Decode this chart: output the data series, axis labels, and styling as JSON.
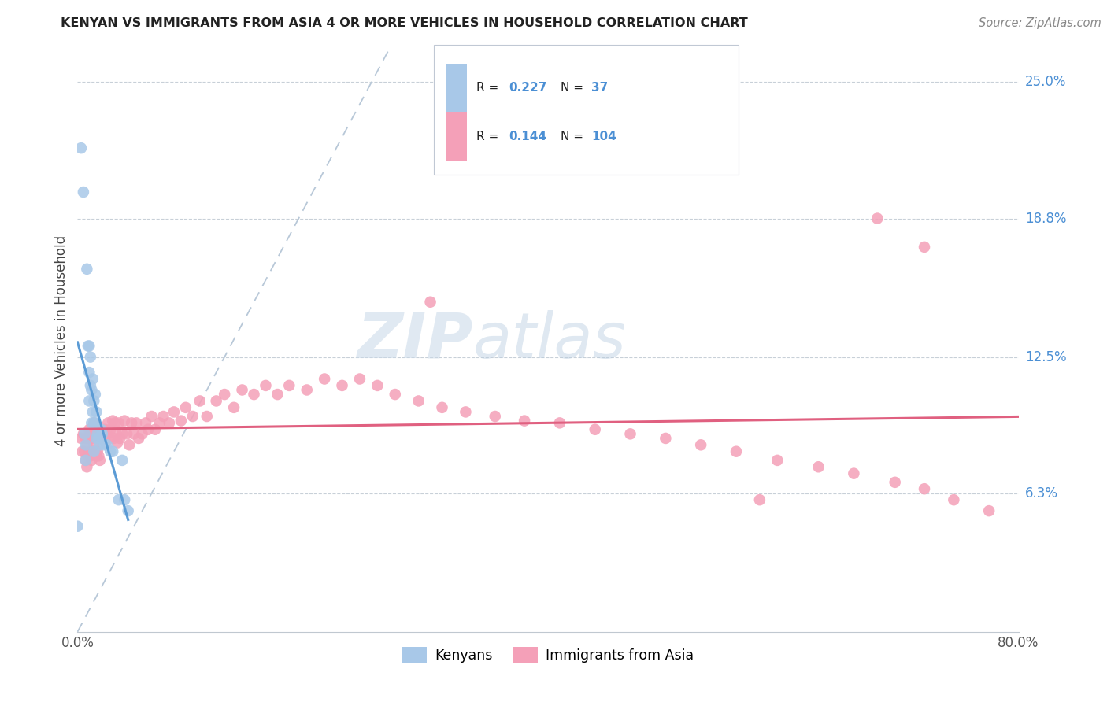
{
  "title": "KENYAN VS IMMIGRANTS FROM ASIA 4 OR MORE VEHICLES IN HOUSEHOLD CORRELATION CHART",
  "source": "Source: ZipAtlas.com",
  "ylabel_label": "4 or more Vehicles in Household",
  "ylabel_ticks": [
    "6.3%",
    "12.5%",
    "18.8%",
    "25.0%"
  ],
  "ylabel_values": [
    0.063,
    0.125,
    0.188,
    0.25
  ],
  "xmin": 0.0,
  "xmax": 0.8,
  "ymin": 0.0,
  "ymax": 0.265,
  "kenyan_R": "0.227",
  "kenyan_N": "37",
  "asian_R": "0.144",
  "asian_N": "104",
  "kenyan_color": "#a8c8e8",
  "kenyan_line_color": "#5b9bd5",
  "asian_color": "#f4a0b8",
  "asian_line_color": "#e06080",
  "diagonal_color": "#b8c8d8",
  "watermark_zip": "ZIP",
  "watermark_atlas": "atlas",
  "kenyan_x": [
    0.003,
    0.005,
    0.006,
    0.007,
    0.007,
    0.008,
    0.009,
    0.01,
    0.01,
    0.01,
    0.011,
    0.011,
    0.012,
    0.012,
    0.013,
    0.013,
    0.014,
    0.014,
    0.014,
    0.015,
    0.015,
    0.016,
    0.016,
    0.017,
    0.018,
    0.019,
    0.02,
    0.021,
    0.023,
    0.025,
    0.028,
    0.03,
    0.035,
    0.038,
    0.04,
    0.043,
    0.0
  ],
  "kenyan_y": [
    0.22,
    0.2,
    0.09,
    0.085,
    0.078,
    0.165,
    0.13,
    0.13,
    0.118,
    0.105,
    0.125,
    0.112,
    0.11,
    0.095,
    0.115,
    0.1,
    0.105,
    0.095,
    0.082,
    0.108,
    0.095,
    0.1,
    0.088,
    0.09,
    0.088,
    0.085,
    0.092,
    0.09,
    0.085,
    0.085,
    0.082,
    0.082,
    0.06,
    0.078,
    0.06,
    0.055,
    0.048
  ],
  "asian_x": [
    0.003,
    0.004,
    0.005,
    0.006,
    0.007,
    0.007,
    0.008,
    0.008,
    0.009,
    0.009,
    0.01,
    0.01,
    0.011,
    0.011,
    0.012,
    0.012,
    0.013,
    0.013,
    0.014,
    0.014,
    0.015,
    0.015,
    0.016,
    0.016,
    0.017,
    0.017,
    0.018,
    0.018,
    0.019,
    0.019,
    0.02,
    0.021,
    0.022,
    0.023,
    0.024,
    0.025,
    0.026,
    0.027,
    0.028,
    0.03,
    0.031,
    0.032,
    0.033,
    0.034,
    0.035,
    0.036,
    0.038,
    0.04,
    0.042,
    0.044,
    0.046,
    0.048,
    0.05,
    0.052,
    0.055,
    0.058,
    0.06,
    0.063,
    0.066,
    0.07,
    0.073,
    0.078,
    0.082,
    0.088,
    0.092,
    0.098,
    0.104,
    0.11,
    0.118,
    0.125,
    0.133,
    0.14,
    0.15,
    0.16,
    0.17,
    0.18,
    0.195,
    0.21,
    0.225,
    0.24,
    0.255,
    0.27,
    0.29,
    0.31,
    0.33,
    0.355,
    0.38,
    0.41,
    0.44,
    0.47,
    0.5,
    0.53,
    0.56,
    0.595,
    0.63,
    0.66,
    0.695,
    0.72,
    0.745,
    0.775,
    0.3,
    0.58,
    0.68,
    0.72
  ],
  "asian_y": [
    0.088,
    0.082,
    0.09,
    0.082,
    0.088,
    0.078,
    0.085,
    0.075,
    0.088,
    0.08,
    0.092,
    0.082,
    0.09,
    0.08,
    0.088,
    0.078,
    0.09,
    0.082,
    0.095,
    0.085,
    0.092,
    0.082,
    0.09,
    0.08,
    0.092,
    0.082,
    0.09,
    0.08,
    0.088,
    0.078,
    0.092,
    0.09,
    0.088,
    0.092,
    0.086,
    0.09,
    0.095,
    0.088,
    0.092,
    0.096,
    0.088,
    0.095,
    0.09,
    0.086,
    0.095,
    0.088,
    0.09,
    0.096,
    0.09,
    0.085,
    0.095,
    0.09,
    0.095,
    0.088,
    0.09,
    0.095,
    0.092,
    0.098,
    0.092,
    0.095,
    0.098,
    0.095,
    0.1,
    0.096,
    0.102,
    0.098,
    0.105,
    0.098,
    0.105,
    0.108,
    0.102,
    0.11,
    0.108,
    0.112,
    0.108,
    0.112,
    0.11,
    0.115,
    0.112,
    0.115,
    0.112,
    0.108,
    0.105,
    0.102,
    0.1,
    0.098,
    0.096,
    0.095,
    0.092,
    0.09,
    0.088,
    0.085,
    0.082,
    0.078,
    0.075,
    0.072,
    0.068,
    0.065,
    0.06,
    0.055,
    0.15,
    0.06,
    0.188,
    0.175
  ]
}
